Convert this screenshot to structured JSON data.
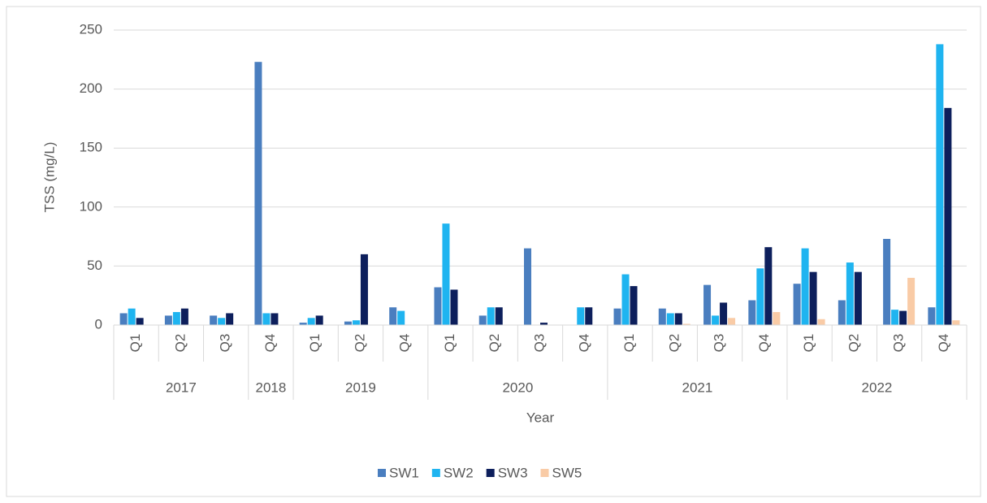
{
  "chart_data": {
    "type": "bar",
    "y_label": "TSS (mg/L)",
    "x_label": "Year",
    "groups": [
      {
        "name": "2017",
        "categories": [
          "Q1",
          "Q2",
          "Q3"
        ]
      },
      {
        "name": "2018",
        "categories": [
          "Q4"
        ]
      },
      {
        "name": "2019",
        "categories": [
          "Q1",
          "Q2",
          "Q4"
        ]
      },
      {
        "name": "2020",
        "categories": [
          "Q1",
          "Q2",
          "Q3",
          "Q4"
        ]
      },
      {
        "name": "2021",
        "categories": [
          "Q1",
          "Q2",
          "Q3",
          "Q4"
        ]
      },
      {
        "name": "2022",
        "categories": [
          "Q1",
          "Q2",
          "Q3",
          "Q4"
        ]
      }
    ],
    "series": [
      {
        "name": "SW1",
        "color": "#4a7ebf",
        "values": [
          10,
          8,
          8,
          223,
          2,
          3,
          15,
          32,
          8,
          65,
          null,
          14,
          14,
          34,
          21,
          35,
          21,
          73,
          15
        ]
      },
      {
        "name": "SW2",
        "color": "#1fb4f0",
        "values": [
          14,
          11,
          6,
          10,
          6,
          4,
          12,
          86,
          15,
          null,
          15,
          43,
          10,
          8,
          48,
          65,
          53,
          13,
          238
        ]
      },
      {
        "name": "SW3",
        "color": "#0d1f5c",
        "values": [
          6,
          14,
          10,
          10,
          8,
          60,
          null,
          30,
          15,
          2,
          15,
          33,
          10,
          19,
          66,
          45,
          45,
          12,
          184
        ]
      },
      {
        "name": "SW5",
        "color": "#f9cba6",
        "values": [
          null,
          null,
          null,
          null,
          null,
          null,
          null,
          null,
          null,
          null,
          null,
          null,
          1,
          6,
          11,
          5,
          null,
          40,
          4
        ]
      }
    ],
    "ylim": [
      0,
      250
    ],
    "yticks": [
      0,
      50,
      100,
      150,
      200,
      250
    ],
    "grid": true,
    "legend": "bottom"
  }
}
